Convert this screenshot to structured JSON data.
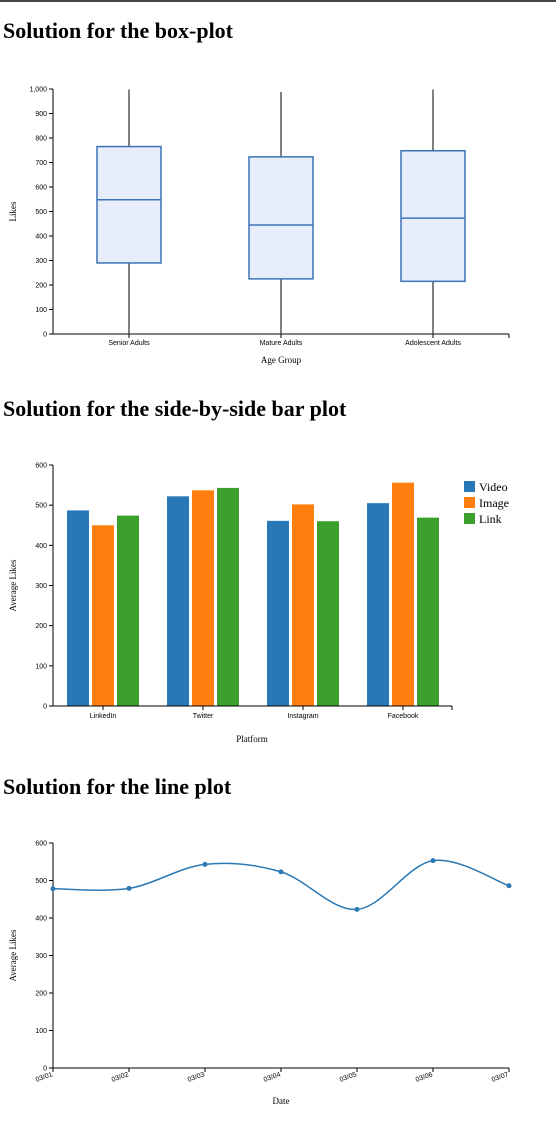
{
  "sections": [
    {
      "title": "Solution for the box-plot"
    },
    {
      "title": "Solution for the side-by-side bar plot"
    },
    {
      "title": "Solution for the line plot"
    }
  ],
  "colors": {
    "box_fill": "#e8eef9",
    "box_stroke": "#3b73b9",
    "whisker": "#555555",
    "axis": "#000000",
    "video": "#2878b8",
    "image": "#ff7f0e",
    "link": "#3ca02c",
    "line": "#2a78b4"
  },
  "chart_data": [
    {
      "type": "box",
      "xlabel": "Age Group",
      "ylabel": "Likes",
      "ylim": [
        0,
        1000
      ],
      "yticks": [
        0,
        100,
        200,
        300,
        400,
        500,
        600,
        700,
        800,
        900,
        1000
      ],
      "ytick_labels": [
        "0",
        "100",
        "200",
        "300",
        "400",
        "500",
        "600",
        "700",
        "800",
        "900",
        "1,000"
      ],
      "categories": [
        "Senior Adults",
        "Mature Adults",
        "Adolescent Adults"
      ],
      "boxes": [
        {
          "min": 0,
          "q1": 290,
          "median": 548,
          "q3": 765,
          "max": 998
        },
        {
          "min": 0,
          "q1": 225,
          "median": 445,
          "q3": 723,
          "max": 988
        },
        {
          "min": 0,
          "q1": 215,
          "median": 473,
          "q3": 748,
          "max": 998
        }
      ]
    },
    {
      "type": "bar",
      "xlabel": "Platform",
      "ylabel": "Average Likes",
      "ylim": [
        0,
        600
      ],
      "yticks": [
        0,
        100,
        200,
        300,
        400,
        500,
        600
      ],
      "categories": [
        "LinkedIn",
        "Twitter",
        "Instagram",
        "Facebook"
      ],
      "legend_position": "top-right",
      "series": [
        {
          "name": "Video",
          "values": [
            487,
            522,
            461,
            505
          ]
        },
        {
          "name": "Image",
          "values": [
            450,
            537,
            502,
            556
          ]
        },
        {
          "name": "Link",
          "values": [
            474,
            543,
            460,
            469
          ]
        }
      ]
    },
    {
      "type": "line",
      "xlabel": "Date",
      "ylabel": "Average Likes",
      "ylim": [
        0,
        600
      ],
      "yticks": [
        0,
        100,
        200,
        300,
        400,
        500,
        600
      ],
      "x": [
        "03/01",
        "03/02",
        "03/03",
        "03/04",
        "03/05",
        "03/06",
        "03/07"
      ],
      "values": [
        478,
        479,
        543,
        523,
        423,
        553,
        486
      ]
    }
  ]
}
